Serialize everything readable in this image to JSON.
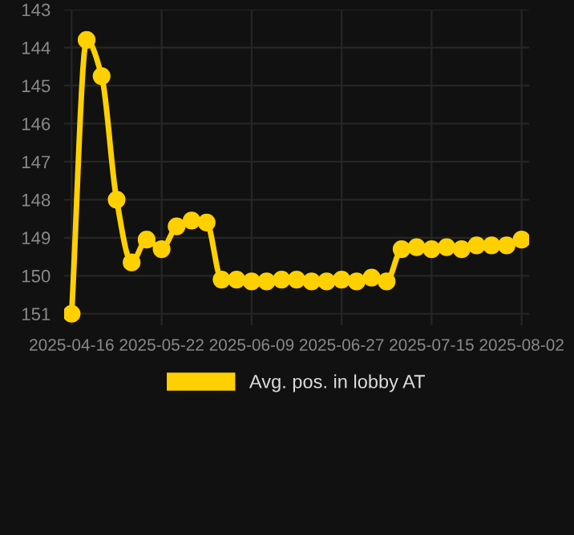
{
  "chart_data": {
    "type": "line",
    "categories": [
      "2025-04-16",
      null,
      null,
      null,
      null,
      null,
      "2025-05-22",
      null,
      null,
      null,
      null,
      null,
      "2025-06-09",
      null,
      null,
      null,
      null,
      null,
      "2025-06-27",
      null,
      null,
      null,
      null,
      null,
      "2025-07-15",
      null,
      null,
      null,
      null,
      null,
      "2025-08-02"
    ],
    "series": [
      {
        "name": "Avg. pos. in lobby AT",
        "color": "#ffd000",
        "values": [
          151.0,
          143.8,
          144.75,
          148.0,
          149.65,
          149.05,
          149.3,
          148.7,
          148.55,
          148.6,
          150.1,
          150.1,
          150.15,
          150.15,
          150.1,
          150.1,
          150.15,
          150.15,
          150.1,
          150.15,
          150.05,
          150.15,
          149.3,
          149.25,
          149.3,
          149.25,
          149.3,
          149.2,
          149.2,
          149.2,
          149.05
        ]
      }
    ],
    "ylim": [
      151.3,
      143
    ],
    "yticks": [
      143,
      144,
      145,
      146,
      147,
      148,
      149,
      150,
      151
    ],
    "grid": true,
    "legend": "bottom",
    "marker": "circle",
    "line_style": "solid"
  }
}
